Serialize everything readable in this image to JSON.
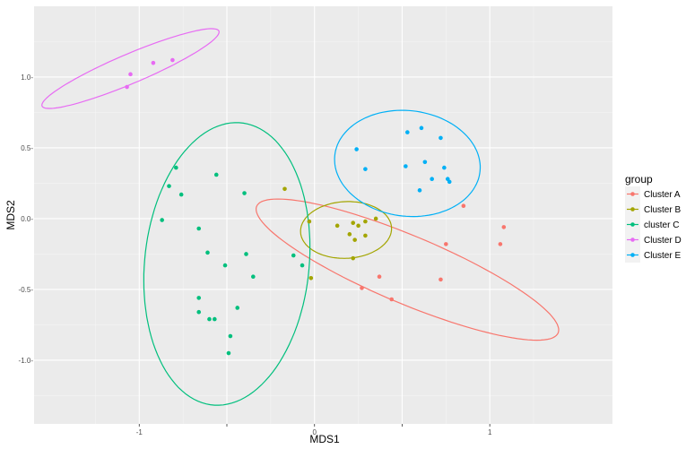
{
  "chart_data": {
    "type": "scatter",
    "xlabel": "MDS1",
    "ylabel": "MDS2",
    "xlim": [
      -1.6,
      1.7
    ],
    "ylim": [
      -1.45,
      1.5
    ],
    "x_ticks": [
      -1,
      -0.5,
      0,
      0.5,
      1
    ],
    "x_tick_labels": [
      "-1",
      "",
      "0",
      "",
      "1"
    ],
    "y_ticks": [
      1.0,
      0.5,
      0.0,
      -0.5,
      -1.0
    ],
    "y_tick_labels": [
      "1.0-",
      "0.5-",
      "0.0-",
      "-0.5-",
      "-1.0-"
    ],
    "grid": true,
    "legend_title": "group",
    "legend_position": "right",
    "series": [
      {
        "name": "Cluster A",
        "color": "#F8766D",
        "points": [
          [
            0.85,
            0.09
          ],
          [
            1.08,
            -0.06
          ],
          [
            1.06,
            -0.18
          ],
          [
            0.75,
            -0.18
          ],
          [
            0.72,
            -0.43
          ],
          [
            0.37,
            -0.41
          ],
          [
            0.44,
            -0.57
          ],
          [
            0.27,
            -0.49
          ]
        ],
        "ellipse": {
          "cx": 0.53,
          "cy": -0.36,
          "rx": 0.97,
          "ry": 0.23,
          "angle_deg": -28
        }
      },
      {
        "name": "Cluster B",
        "color": "#A3A500",
        "points": [
          [
            -0.17,
            0.21
          ],
          [
            -0.03,
            -0.02
          ],
          [
            0.13,
            -0.05
          ],
          [
            0.22,
            -0.03
          ],
          [
            0.25,
            -0.05
          ],
          [
            0.29,
            -0.02
          ],
          [
            0.35,
            0.0
          ],
          [
            0.2,
            -0.11
          ],
          [
            0.23,
            -0.15
          ],
          [
            0.29,
            -0.12
          ],
          [
            0.22,
            -0.28
          ],
          [
            -0.02,
            -0.42
          ]
        ],
        "ellipse": {
          "cx": 0.18,
          "cy": -0.08,
          "rx": 0.26,
          "ry": 0.2,
          "angle_deg": 5
        }
      },
      {
        "name": "cluster C",
        "color": "#00BF7D",
        "points": [
          [
            -0.79,
            0.36
          ],
          [
            -0.56,
            0.31
          ],
          [
            -0.83,
            0.23
          ],
          [
            -0.76,
            0.17
          ],
          [
            -0.4,
            0.18
          ],
          [
            -0.87,
            -0.01
          ],
          [
            -0.66,
            -0.07
          ],
          [
            -0.61,
            -0.24
          ],
          [
            -0.51,
            -0.33
          ],
          [
            -0.39,
            -0.25
          ],
          [
            -0.35,
            -0.41
          ],
          [
            -0.12,
            -0.26
          ],
          [
            -0.07,
            -0.33
          ],
          [
            -0.66,
            -0.56
          ],
          [
            -0.66,
            -0.66
          ],
          [
            -0.6,
            -0.71
          ],
          [
            -0.57,
            -0.71
          ],
          [
            -0.44,
            -0.63
          ],
          [
            -0.48,
            -0.83
          ],
          [
            -0.49,
            -0.95
          ]
        ],
        "ellipse": {
          "cx": -0.5,
          "cy": -0.32,
          "rx": 1.0,
          "ry": 0.47,
          "angle_deg": 86
        }
      },
      {
        "name": "Cluster D",
        "color": "#E76BF3",
        "points": [
          [
            -1.05,
            1.02
          ],
          [
            -0.92,
            1.1
          ],
          [
            -0.81,
            1.12
          ],
          [
            -1.07,
            0.93
          ]
        ],
        "ellipse": {
          "cx": -1.05,
          "cy": 1.06,
          "rx": 0.57,
          "ry": 0.1,
          "angle_deg": 28
        }
      },
      {
        "name": "Cluster E",
        "color": "#00B0F6",
        "points": [
          [
            0.61,
            0.64
          ],
          [
            0.53,
            0.61
          ],
          [
            0.72,
            0.57
          ],
          [
            0.24,
            0.49
          ],
          [
            0.63,
            0.4
          ],
          [
            0.52,
            0.37
          ],
          [
            0.74,
            0.36
          ],
          [
            0.29,
            0.35
          ],
          [
            0.76,
            0.28
          ],
          [
            0.67,
            0.28
          ],
          [
            0.77,
            0.26
          ],
          [
            0.6,
            0.2
          ]
        ],
        "ellipse": {
          "cx": 0.53,
          "cy": 0.39,
          "rx": 0.42,
          "ry": 0.37,
          "angle_deg": -18
        }
      }
    ]
  }
}
